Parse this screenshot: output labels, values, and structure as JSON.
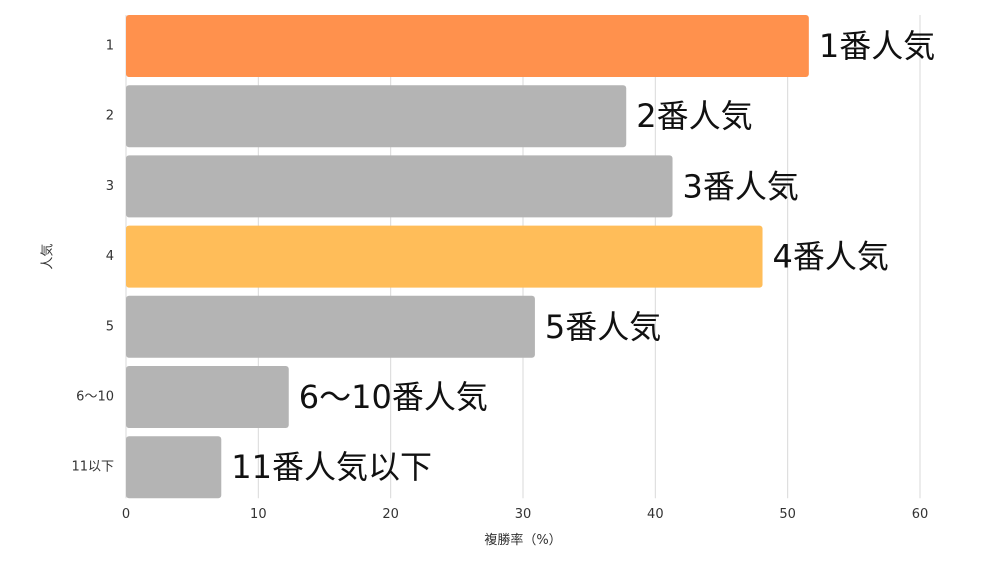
{
  "chart_data": {
    "type": "bar",
    "orientation": "horizontal",
    "categories": [
      "1",
      "2",
      "3",
      "4",
      "5",
      "6〜10",
      "11以下"
    ],
    "values": [
      51.6,
      37.8,
      41.3,
      48.1,
      30.9,
      12.3,
      7.2
    ],
    "bar_labels": [
      "1番人気",
      "2番人気",
      "3番人気",
      "4番人気",
      "5番人気",
      "6〜10番人気",
      "11番人気以下"
    ],
    "bar_colors": [
      "#ff914d",
      "#b4b4b4",
      "#b4b4b4",
      "#ffbd59",
      "#b4b4b4",
      "#b4b4b4",
      "#b4b4b4"
    ],
    "xlabel": "複勝率（%）",
    "ylabel": "人気",
    "xlim": [
      0,
      60
    ],
    "x_ticks": [
      0,
      10,
      20,
      30,
      40,
      50,
      60
    ],
    "grid": "vertical",
    "legend": "none"
  }
}
